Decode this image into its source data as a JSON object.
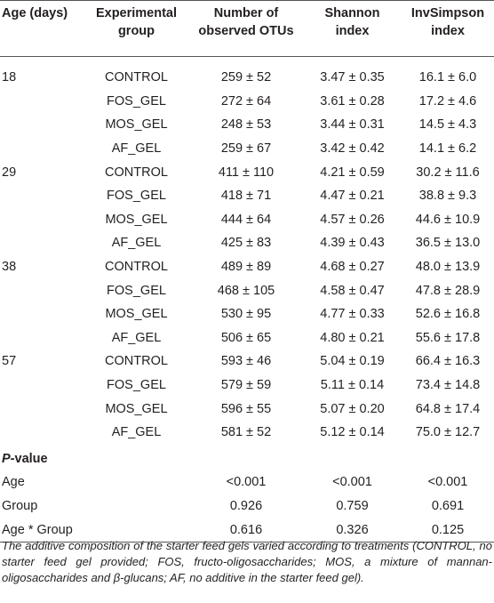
{
  "headers": {
    "age": "Age (days)",
    "group_line1": "Experimental",
    "group_line2": "group",
    "otus_line1": "Number of",
    "otus_line2": "observed OTUs",
    "shannon_line1": "Shannon",
    "shannon_line2": "index",
    "invsimpson_line1": "InvSimpson",
    "invsimpson_line2": "index"
  },
  "rows": [
    {
      "age": "18",
      "group": "CONTROL",
      "otus": "259 ± 52",
      "shannon": "3.47 ± 0.35",
      "invsimpson": "16.1 ± 6.0"
    },
    {
      "age": "",
      "group": "FOS_GEL",
      "otus": "272 ± 64",
      "shannon": "3.61 ± 0.28",
      "invsimpson": "17.2 ± 4.6"
    },
    {
      "age": "",
      "group": "MOS_GEL",
      "otus": "248 ± 53",
      "shannon": "3.44 ± 0.31",
      "invsimpson": "14.5 ± 4.3"
    },
    {
      "age": "",
      "group": "AF_GEL",
      "otus": "259 ± 67",
      "shannon": "3.42 ± 0.42",
      "invsimpson": "14.1 ± 6.2"
    },
    {
      "age": "29",
      "group": "CONTROL",
      "otus": "411 ± 110",
      "shannon": "4.21 ± 0.59",
      "invsimpson": "30.2 ± 11.6"
    },
    {
      "age": "",
      "group": "FOS_GEL",
      "otus": "418 ± 71",
      "shannon": "4.47 ± 0.21",
      "invsimpson": "38.8 ± 9.3"
    },
    {
      "age": "",
      "group": "MOS_GEL",
      "otus": "444 ± 64",
      "shannon": "4.57 ± 0.26",
      "invsimpson": "44.6 ± 10.9"
    },
    {
      "age": "",
      "group": "AF_GEL",
      "otus": "425 ± 83",
      "shannon": "4.39 ± 0.43",
      "invsimpson": "36.5 ± 13.0"
    },
    {
      "age": "38",
      "group": "CONTROL",
      "otus": "489 ± 89",
      "shannon": "4.68 ± 0.27",
      "invsimpson": "48.0 ± 13.9"
    },
    {
      "age": "",
      "group": "FOS_GEL",
      "otus": "468 ± 105",
      "shannon": "4.58 ± 0.47",
      "invsimpson": "47.8 ± 28.9"
    },
    {
      "age": "",
      "group": "MOS_GEL",
      "otus": "530 ± 95",
      "shannon": "4.77 ± 0.33",
      "invsimpson": "52.6 ± 16.8"
    },
    {
      "age": "",
      "group": "AF_GEL",
      "otus": "506 ± 65",
      "shannon": "4.80 ± 0.21",
      "invsimpson": "55.6 ± 17.8"
    },
    {
      "age": "57",
      "group": "CONTROL",
      "otus": "593 ± 46",
      "shannon": "5.04 ± 0.19",
      "invsimpson": "66.4 ± 16.3"
    },
    {
      "age": "",
      "group": "FOS_GEL",
      "otus": "579 ± 59",
      "shannon": "5.11 ± 0.14",
      "invsimpson": "73.4 ± 14.8"
    },
    {
      "age": "",
      "group": "MOS_GEL",
      "otus": "596 ± 55",
      "shannon": "5.07 ± 0.20",
      "invsimpson": "64.8 ± 17.4"
    },
    {
      "age": "",
      "group": "AF_GEL",
      "otus": "581 ± 52",
      "shannon": "5.12 ± 0.14",
      "invsimpson": "75.0 ± 12.7"
    }
  ],
  "pvalue": {
    "heading_italic": "P",
    "heading_rest": "-value",
    "rows": [
      {
        "label": "Age",
        "otus": "<0.001",
        "shannon": "<0.001",
        "invsimpson": "<0.001"
      },
      {
        "label": "Group",
        "otus": "0.926",
        "shannon": "0.759",
        "invsimpson": "0.691"
      },
      {
        "label": "Age * Group",
        "otus": "0.616",
        "shannon": "0.326",
        "invsimpson": "0.125"
      }
    ]
  },
  "footnote": "The additive composition of the starter feed gels varied according to treatments (CONTROL, no starter feed gel provided; FOS, fructo-oligosaccharides; MOS, a mixture of mannan-oligosaccharides and β-glucans; AF, no additive in the starter feed gel)."
}
